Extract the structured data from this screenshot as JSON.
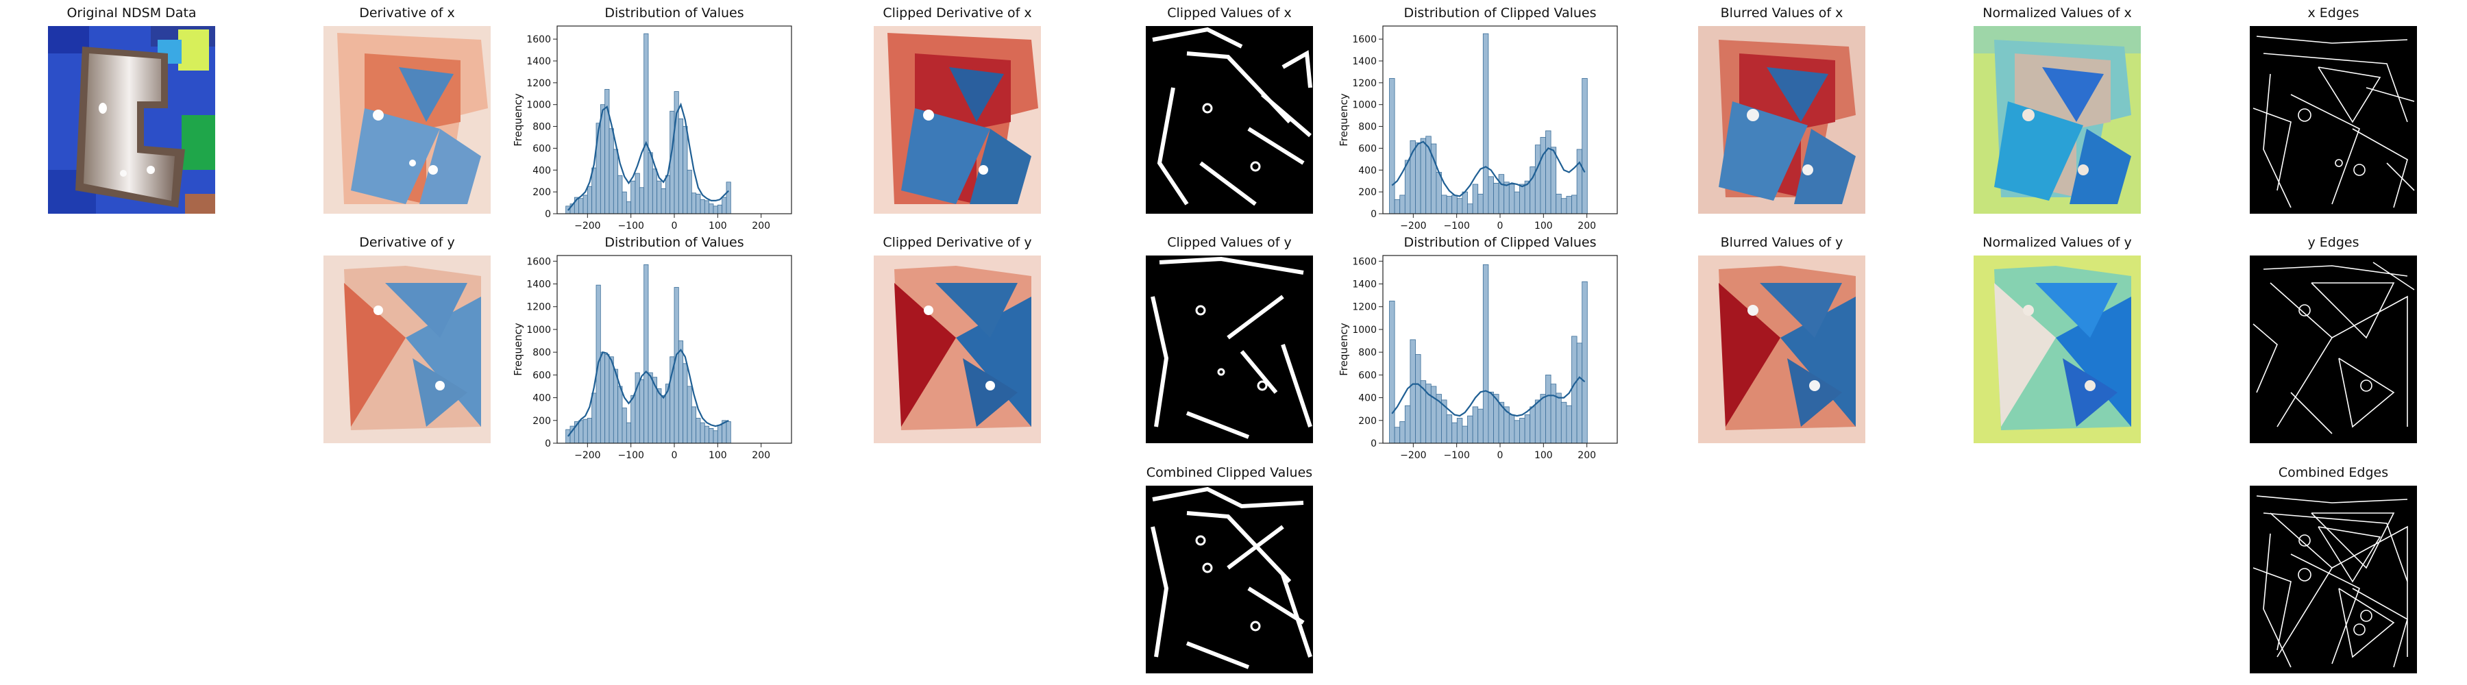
{
  "panels": {
    "original": {
      "title": "Original NDSM Data"
    },
    "deriv_x": {
      "title": "Derivative of x"
    },
    "deriv_y": {
      "title": "Derivative of y"
    },
    "clipped_deriv_x": {
      "title": "Clipped Derivative of x"
    },
    "clipped_deriv_y": {
      "title": "Clipped Derivative of y"
    },
    "clipped_vals_x": {
      "title": "Clipped Values  of x"
    },
    "clipped_vals_y": {
      "title": "Clipped Values  of y"
    },
    "combined_clipped": {
      "title": "Combined Clipped Values"
    },
    "blurred_x": {
      "title": "Blurred Values of x"
    },
    "blurred_y": {
      "title": "Blurred Values of y"
    },
    "normalized_x": {
      "title": "Normalized Values of x"
    },
    "normalized_y": {
      "title": "Normalized Values of y"
    },
    "edges_x": {
      "title": "x Edges"
    },
    "edges_y": {
      "title": "y Edges"
    },
    "edges_combined": {
      "title": "Combined Edges"
    }
  },
  "chart_data": [
    {
      "id": "hist_x",
      "type": "bar",
      "title": "Distribution of Values",
      "ylabel": "Frequency",
      "xlabel": "",
      "xlim": [
        -270,
        270
      ],
      "ylim": [
        0,
        1720
      ],
      "xticks": [
        -200,
        -100,
        0,
        100,
        200
      ],
      "xtick_labels": [
        "−200",
        "−100",
        "0",
        "100",
        "200"
      ],
      "yticks": [
        0,
        200,
        400,
        600,
        800,
        1000,
        1200,
        1400,
        1600
      ],
      "bin_start": -250,
      "bin_width": 10,
      "values": [
        70,
        90,
        150,
        140,
        170,
        250,
        420,
        830,
        1000,
        1140,
        780,
        590,
        350,
        200,
        110,
        300,
        370,
        240,
        1650,
        560,
        410,
        300,
        230,
        350,
        940,
        1120,
        870,
        800,
        400,
        190,
        180,
        130,
        120,
        90,
        70,
        80,
        150,
        290
      ],
      "kde": [
        30,
        80,
        130,
        160,
        200,
        290,
        450,
        760,
        950,
        980,
        820,
        640,
        460,
        340,
        280,
        340,
        440,
        560,
        650,
        560,
        440,
        330,
        290,
        360,
        590,
        920,
        1000,
        860,
        620,
        400,
        240,
        170,
        140,
        120,
        120,
        130,
        170,
        210
      ]
    },
    {
      "id": "hist_y",
      "type": "bar",
      "title": "Distribution of Values",
      "ylabel": "Frequency",
      "xlabel": "",
      "xlim": [
        -270,
        270
      ],
      "ylim": [
        0,
        1650
      ],
      "xticks": [
        -200,
        -100,
        0,
        100,
        200
      ],
      "xtick_labels": [
        "−200",
        "−100",
        "0",
        "100",
        "200"
      ],
      "yticks": [
        0,
        200,
        400,
        600,
        800,
        1000,
        1200,
        1400,
        1600
      ],
      "bin_start": -250,
      "bin_width": 10,
      "values": [
        120,
        150,
        190,
        200,
        210,
        220,
        440,
        1390,
        800,
        780,
        760,
        650,
        500,
        310,
        180,
        420,
        620,
        560,
        1570,
        620,
        580,
        480,
        420,
        520,
        760,
        1370,
        900,
        700,
        500,
        320,
        220,
        180,
        150,
        130,
        110,
        160,
        200,
        190
      ],
      "kde": [
        60,
        110,
        160,
        210,
        240,
        320,
        490,
        710,
        800,
        790,
        730,
        620,
        500,
        400,
        350,
        400,
        500,
        590,
        630,
        590,
        510,
        440,
        400,
        460,
        620,
        780,
        820,
        760,
        600,
        430,
        300,
        220,
        180,
        160,
        150,
        160,
        180,
        200
      ]
    },
    {
      "id": "hist_cx",
      "type": "bar",
      "title": "Distribution of Clipped Values",
      "ylabel": "Frequency",
      "xlabel": "",
      "xlim": [
        -270,
        270
      ],
      "ylim": [
        0,
        1720
      ],
      "xticks": [
        -200,
        -100,
        0,
        100,
        200
      ],
      "xtick_labels": [
        "−200",
        "−100",
        "0",
        "100",
        "200"
      ],
      "yticks": [
        0,
        200,
        400,
        600,
        800,
        1000,
        1200,
        1400,
        1600
      ],
      "bin_start": -255,
      "bin_width": 12,
      "values": [
        1240,
        130,
        170,
        490,
        670,
        650,
        690,
        710,
        640,
        380,
        170,
        160,
        170,
        140,
        200,
        90,
        270,
        180,
        1650,
        340,
        280,
        360,
        290,
        270,
        200,
        270,
        300,
        430,
        630,
        700,
        760,
        610,
        180,
        140,
        160,
        170,
        590,
        1240
      ],
      "kde": [
        260,
        300,
        380,
        470,
        570,
        640,
        660,
        610,
        500,
        380,
        280,
        210,
        170,
        160,
        200,
        260,
        340,
        410,
        430,
        400,
        330,
        270,
        260,
        280,
        270,
        250,
        270,
        330,
        430,
        540,
        600,
        580,
        490,
        400,
        380,
        420,
        470,
        380
      ]
    },
    {
      "id": "hist_cy",
      "type": "bar",
      "title": "Distribution of Clipped Values",
      "ylabel": "Frequency",
      "xlabel": "",
      "xlim": [
        -270,
        270
      ],
      "ylim": [
        0,
        1650
      ],
      "xticks": [
        -200,
        -100,
        0,
        100,
        200
      ],
      "xtick_labels": [
        "−200",
        "−100",
        "0",
        "100",
        "200"
      ],
      "yticks": [
        0,
        200,
        400,
        600,
        800,
        1000,
        1200,
        1400,
        1600
      ],
      "bin_start": -255,
      "bin_width": 12,
      "values": [
        1250,
        140,
        190,
        330,
        910,
        780,
        550,
        520,
        500,
        430,
        380,
        250,
        180,
        220,
        150,
        240,
        320,
        300,
        1570,
        450,
        430,
        360,
        320,
        250,
        200,
        220,
        250,
        320,
        380,
        430,
        600,
        520,
        440,
        360,
        330,
        940,
        880,
        1420
      ],
      "kde": [
        260,
        320,
        400,
        480,
        520,
        520,
        480,
        430,
        400,
        370,
        330,
        290,
        250,
        240,
        270,
        330,
        400,
        450,
        460,
        440,
        390,
        330,
        280,
        250,
        240,
        250,
        280,
        320,
        360,
        400,
        420,
        420,
        400,
        400,
        440,
        520,
        580,
        540
      ]
    }
  ]
}
